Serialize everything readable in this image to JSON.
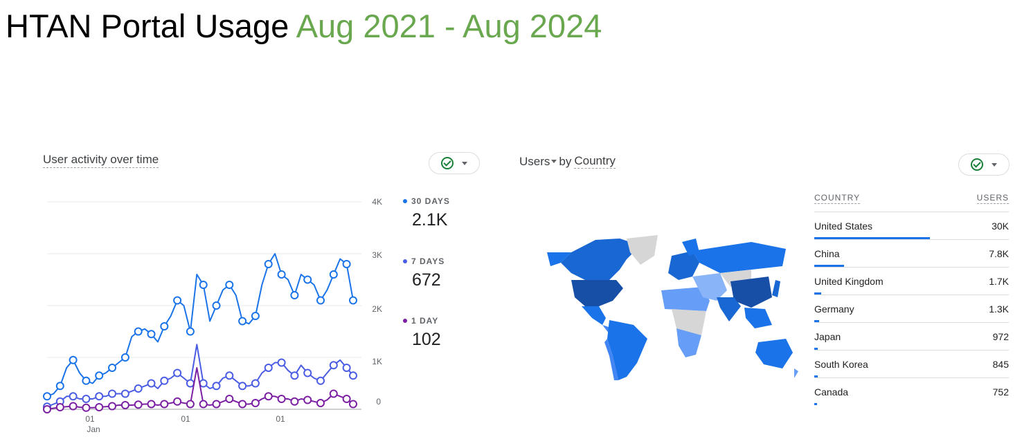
{
  "title": {
    "main": "HTAN Portal Usage",
    "range": "Aug 2021 - Aug 2024"
  },
  "activity_card": {
    "title": "User activity over time",
    "y_ticks": [
      "4K",
      "3K",
      "2K",
      "1K",
      "0"
    ],
    "x_ticks": [
      "01",
      "01",
      "01"
    ],
    "x_sub": "Jan",
    "legend": [
      {
        "label": "30 DAYS",
        "value": "2.1K",
        "color": "#1a73e8"
      },
      {
        "label": "7 DAYS",
        "value": "672",
        "color": "#4a5ce3"
      },
      {
        "label": "1 DAY",
        "value": "102",
        "color": "#7b1fa2"
      }
    ]
  },
  "country_card": {
    "metric": "Users",
    "by": "by",
    "dimension": "Country",
    "col_country": "COUNTRY",
    "col_users": "USERS",
    "rows": [
      {
        "country": "United States",
        "users": "30K",
        "share": 1.0
      },
      {
        "country": "China",
        "users": "7.8K",
        "share": 0.26
      },
      {
        "country": "United Kingdom",
        "users": "1.7K",
        "share": 0.057
      },
      {
        "country": "Germany",
        "users": "1.3K",
        "share": 0.043
      },
      {
        "country": "Japan",
        "users": "972",
        "share": 0.032
      },
      {
        "country": "South Korea",
        "users": "845",
        "share": 0.028
      },
      {
        "country": "Canada",
        "users": "752",
        "share": 0.025
      }
    ]
  },
  "chart_data": {
    "type": "line",
    "title": "User activity over time",
    "xlabel": "",
    "ylabel": "",
    "ylim": [
      0,
      4000
    ],
    "x_tick_labels": [
      "01 Jan",
      "01",
      "01"
    ],
    "grid": true,
    "legend_position": "right",
    "series": [
      {
        "name": "30 DAYS",
        "color": "#1a73e8",
        "values": [
          250,
          300,
          450,
          800,
          950,
          700,
          550,
          500,
          650,
          700,
          800,
          900,
          1000,
          1400,
          1500,
          1550,
          1450,
          1300,
          1600,
          1800,
          2100,
          2000,
          1500,
          2600,
          2400,
          1700,
          2000,
          2300,
          2400,
          2200,
          1700,
          1650,
          1800,
          2400,
          2800,
          3000,
          2600,
          2500,
          2200,
          2600,
          2500,
          2400,
          2100,
          2300,
          2600,
          2900,
          2800,
          2100
        ]
      },
      {
        "name": "7 DAYS",
        "color": "#4a5ce3",
        "values": [
          50,
          100,
          150,
          250,
          250,
          200,
          200,
          200,
          250,
          250,
          300,
          300,
          300,
          350,
          400,
          450,
          500,
          400,
          550,
          600,
          700,
          600,
          500,
          1250,
          500,
          400,
          450,
          600,
          650,
          550,
          450,
          450,
          500,
          700,
          800,
          900,
          900,
          750,
          650,
          850,
          700,
          600,
          550,
          700,
          850,
          950,
          800,
          650
        ]
      },
      {
        "name": "1 DAY",
        "color": "#7b1fa2",
        "values": [
          0,
          20,
          40,
          50,
          60,
          40,
          30,
          30,
          40,
          50,
          60,
          80,
          80,
          80,
          90,
          100,
          100,
          80,
          100,
          120,
          150,
          120,
          100,
          800,
          100,
          80,
          100,
          150,
          200,
          150,
          100,
          100,
          120,
          200,
          250,
          250,
          200,
          200,
          150,
          200,
          180,
          150,
          120,
          180,
          300,
          250,
          200,
          100
        ]
      }
    ]
  }
}
